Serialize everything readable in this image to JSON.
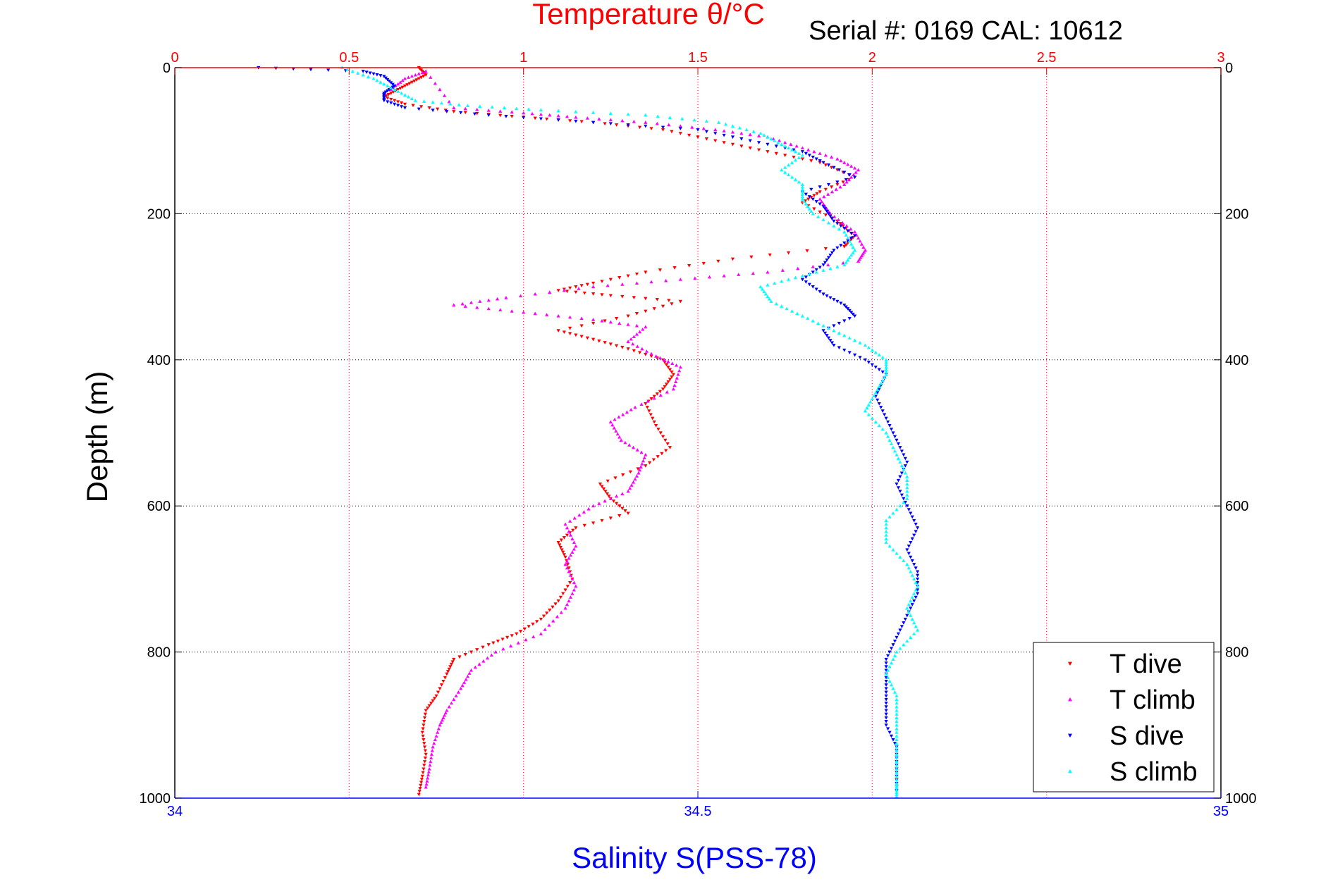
{
  "chart_data": {
    "type": "scatter",
    "title": "Temperature θ/°C",
    "annotation": "Serial #: 0169 CAL: 10612",
    "xlabel_top": "Temperature θ/°C",
    "xlabel_bottom": "Salinity S(PSS-78)",
    "ylabel": "Depth (m)",
    "x_top_range": [
      0,
      3
    ],
    "x_top_ticks": [
      "0",
      "0.5",
      "1",
      "1.5",
      "2",
      "2.5",
      "3"
    ],
    "x_bottom_range": [
      34,
      35
    ],
    "x_bottom_ticks": [
      "34",
      "34.5",
      "35"
    ],
    "y_range": [
      0,
      1000
    ],
    "y_reversed": true,
    "y_ticks": [
      "0",
      "200",
      "400",
      "600",
      "800",
      "1000"
    ],
    "grid": true,
    "legend_placement": "bottom-right",
    "series": [
      {
        "name": "T dive",
        "axis": "temperature",
        "color": "#ff0000",
        "marker": "triangle-down",
        "points": [
          [
            0.7,
            0
          ],
          [
            0.72,
            10
          ],
          [
            0.68,
            20
          ],
          [
            0.64,
            30
          ],
          [
            0.6,
            40
          ],
          [
            0.66,
            50
          ],
          [
            0.8,
            60
          ],
          [
            1.0,
            68
          ],
          [
            1.2,
            75
          ],
          [
            1.4,
            85
          ],
          [
            1.55,
            100
          ],
          [
            1.7,
            115
          ],
          [
            1.85,
            130
          ],
          [
            1.95,
            150
          ],
          [
            1.85,
            170
          ],
          [
            1.8,
            185
          ],
          [
            1.9,
            210
          ],
          [
            1.95,
            230
          ],
          [
            1.92,
            245
          ],
          [
            1.6,
            262
          ],
          [
            1.35,
            280
          ],
          [
            1.2,
            295
          ],
          [
            1.1,
            305
          ],
          [
            1.25,
            312
          ],
          [
            1.45,
            320
          ],
          [
            1.3,
            340
          ],
          [
            1.1,
            360
          ],
          [
            1.2,
            372
          ],
          [
            1.3,
            385
          ],
          [
            1.4,
            400
          ],
          [
            1.43,
            420
          ],
          [
            1.4,
            440
          ],
          [
            1.35,
            460
          ],
          [
            1.38,
            490
          ],
          [
            1.42,
            520
          ],
          [
            1.35,
            545
          ],
          [
            1.22,
            570
          ],
          [
            1.25,
            590
          ],
          [
            1.3,
            610
          ],
          [
            1.15,
            630
          ],
          [
            1.1,
            650
          ],
          [
            1.12,
            670
          ],
          [
            1.14,
            700
          ],
          [
            1.1,
            730
          ],
          [
            1.05,
            755
          ],
          [
            0.98,
            775
          ],
          [
            0.9,
            790
          ],
          [
            0.8,
            810
          ],
          [
            0.78,
            830
          ],
          [
            0.75,
            860
          ],
          [
            0.72,
            880
          ],
          [
            0.71,
            910
          ],
          [
            0.72,
            940
          ],
          [
            0.71,
            970
          ],
          [
            0.7,
            995
          ]
        ]
      },
      {
        "name": "T climb",
        "axis": "temperature",
        "color": "#ff00ff",
        "marker": "triangle-up",
        "points": [
          [
            0.62,
            30
          ],
          [
            0.66,
            15
          ],
          [
            0.72,
            5
          ],
          [
            0.8,
            55
          ],
          [
            1.0,
            62
          ],
          [
            1.15,
            68
          ],
          [
            1.35,
            75
          ],
          [
            1.55,
            85
          ],
          [
            1.7,
            95
          ],
          [
            1.8,
            110
          ],
          [
            1.9,
            125
          ],
          [
            1.96,
            140
          ],
          [
            1.92,
            160
          ],
          [
            1.85,
            180
          ],
          [
            1.88,
            200
          ],
          [
            1.95,
            225
          ],
          [
            1.98,
            250
          ],
          [
            1.96,
            265
          ],
          [
            1.7,
            280
          ],
          [
            1.45,
            290
          ],
          [
            1.2,
            300
          ],
          [
            0.95,
            315
          ],
          [
            0.8,
            325
          ],
          [
            1.0,
            335
          ],
          [
            1.2,
            345
          ],
          [
            1.35,
            355
          ],
          [
            1.3,
            375
          ],
          [
            1.38,
            395
          ],
          [
            1.45,
            410
          ],
          [
            1.43,
            440
          ],
          [
            1.32,
            465
          ],
          [
            1.25,
            485
          ],
          [
            1.28,
            510
          ],
          [
            1.35,
            530
          ],
          [
            1.33,
            555
          ],
          [
            1.3,
            580
          ],
          [
            1.2,
            600
          ],
          [
            1.12,
            625
          ],
          [
            1.15,
            655
          ],
          [
            1.12,
            680
          ],
          [
            1.15,
            710
          ],
          [
            1.12,
            740
          ],
          [
            1.05,
            775
          ],
          [
            0.92,
            800
          ],
          [
            0.85,
            825
          ],
          [
            0.82,
            850
          ],
          [
            0.78,
            880
          ],
          [
            0.76,
            900
          ],
          [
            0.74,
            930
          ],
          [
            0.73,
            960
          ],
          [
            0.72,
            985
          ]
        ]
      },
      {
        "name": "S dive",
        "axis": "salinity",
        "color": "#0000ff",
        "marker": "triangle-down",
        "points": [
          [
            34.08,
            0
          ],
          [
            34.18,
            5
          ],
          [
            34.2,
            12
          ],
          [
            34.21,
            25
          ],
          [
            34.2,
            35
          ],
          [
            34.2,
            45
          ],
          [
            34.22,
            55
          ],
          [
            34.3,
            65
          ],
          [
            34.4,
            75
          ],
          [
            34.5,
            85
          ],
          [
            34.55,
            100
          ],
          [
            34.6,
            115
          ],
          [
            34.62,
            130
          ],
          [
            34.65,
            150
          ],
          [
            34.6,
            170
          ],
          [
            34.62,
            190
          ],
          [
            34.63,
            210
          ],
          [
            34.65,
            230
          ],
          [
            34.63,
            250
          ],
          [
            34.62,
            270
          ],
          [
            34.6,
            290
          ],
          [
            34.62,
            310
          ],
          [
            34.64,
            325
          ],
          [
            34.65,
            340
          ],
          [
            34.62,
            360
          ],
          [
            34.63,
            380
          ],
          [
            34.66,
            400
          ],
          [
            34.68,
            420
          ],
          [
            34.67,
            450
          ],
          [
            34.68,
            480
          ],
          [
            34.69,
            510
          ],
          [
            34.7,
            540
          ],
          [
            34.69,
            570
          ],
          [
            34.7,
            600
          ],
          [
            34.71,
            630
          ],
          [
            34.7,
            660
          ],
          [
            34.71,
            690
          ],
          [
            34.71,
            720
          ],
          [
            34.7,
            750
          ],
          [
            34.69,
            780
          ],
          [
            34.68,
            810
          ],
          [
            34.68,
            840
          ],
          [
            34.68,
            870
          ],
          [
            34.68,
            900
          ],
          [
            34.69,
            930
          ],
          [
            34.69,
            960
          ],
          [
            34.69,
            990
          ]
        ]
      },
      {
        "name": "S climb",
        "axis": "salinity",
        "color": "#00ffff",
        "marker": "triangle-up",
        "points": [
          [
            34.16,
            0
          ],
          [
            34.19,
            15
          ],
          [
            34.21,
            30
          ],
          [
            34.23,
            45
          ],
          [
            34.28,
            52
          ],
          [
            34.35,
            58
          ],
          [
            34.45,
            65
          ],
          [
            34.52,
            75
          ],
          [
            34.56,
            90
          ],
          [
            34.58,
            105
          ],
          [
            34.6,
            120
          ],
          [
            34.58,
            140
          ],
          [
            34.6,
            160
          ],
          [
            34.6,
            180
          ],
          [
            34.61,
            200
          ],
          [
            34.64,
            225
          ],
          [
            34.65,
            250
          ],
          [
            34.64,
            270
          ],
          [
            34.6,
            285
          ],
          [
            34.56,
            300
          ],
          [
            34.57,
            320
          ],
          [
            34.6,
            340
          ],
          [
            34.63,
            360
          ],
          [
            34.66,
            380
          ],
          [
            34.68,
            400
          ],
          [
            34.68,
            420
          ],
          [
            34.67,
            445
          ],
          [
            34.66,
            470
          ],
          [
            34.68,
            500
          ],
          [
            34.69,
            530
          ],
          [
            34.7,
            560
          ],
          [
            34.7,
            590
          ],
          [
            34.68,
            620
          ],
          [
            34.68,
            650
          ],
          [
            34.7,
            680
          ],
          [
            34.71,
            710
          ],
          [
            34.7,
            740
          ],
          [
            34.71,
            770
          ],
          [
            34.69,
            800
          ],
          [
            34.68,
            830
          ],
          [
            34.69,
            860
          ],
          [
            34.69,
            890
          ],
          [
            34.69,
            920
          ],
          [
            34.69,
            950
          ],
          [
            34.69,
            980
          ],
          [
            34.69,
            998
          ]
        ]
      }
    ]
  }
}
